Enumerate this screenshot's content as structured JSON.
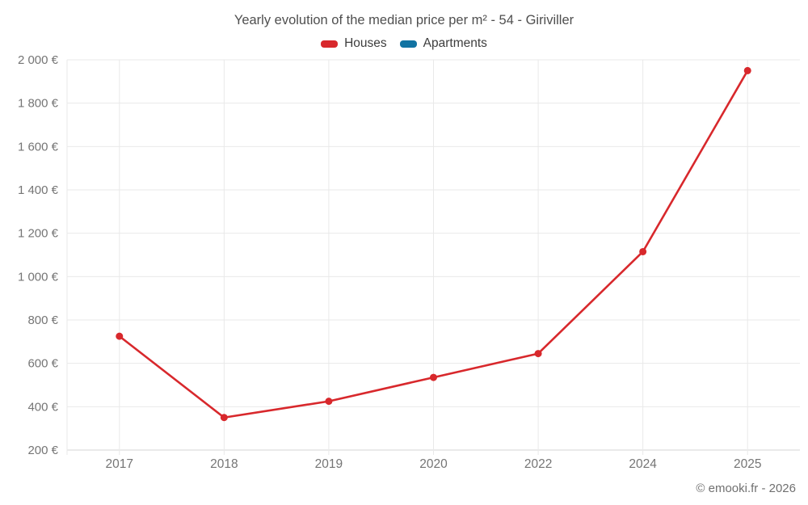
{
  "page": {
    "title": "Yearly evolution of the median price per m² - 54 - Giriviller",
    "footer_credit": "© emooki.fr - 2026"
  },
  "legend": {
    "items": [
      {
        "label": "Houses",
        "color": "#d8282c"
      },
      {
        "label": "Apartments",
        "color": "#1173a2"
      }
    ]
  },
  "chart_data": {
    "type": "line",
    "title": "Yearly evolution of the median price per m² - 54 - Giriviller",
    "categories": [
      "2017",
      "2018",
      "2019",
      "2020",
      "2022",
      "2024",
      "2025"
    ],
    "series": [
      {
        "name": "Houses",
        "color": "#d8282c",
        "values": [
          725,
          350,
          425,
          535,
          645,
          1115,
          1950
        ]
      },
      {
        "name": "Apartments",
        "color": "#1173a2",
        "values": []
      }
    ],
    "xlabel": "",
    "ylabel": "",
    "ylim": [
      200,
      2000
    ],
    "ytick_values": [
      200,
      400,
      600,
      800,
      1000,
      1200,
      1400,
      1600,
      1800,
      2000
    ],
    "ytick_labels": [
      "200 €",
      "400 €",
      "600 €",
      "800 €",
      "1 000 €",
      "1 200 €",
      "1 400 €",
      "1 600 €",
      "1 800 €",
      "2 000 €"
    ],
    "currency_suffix": "€",
    "grid": true,
    "legend_position": "top",
    "marker": "circle"
  },
  "colors": {
    "grid_line": "#e9e9e9",
    "axis_line": "#d6d6d6",
    "tick_text": "#757575",
    "title_text": "#4f4f4f",
    "legend_text": "#3d3d3d",
    "footer_text": "#707070"
  }
}
